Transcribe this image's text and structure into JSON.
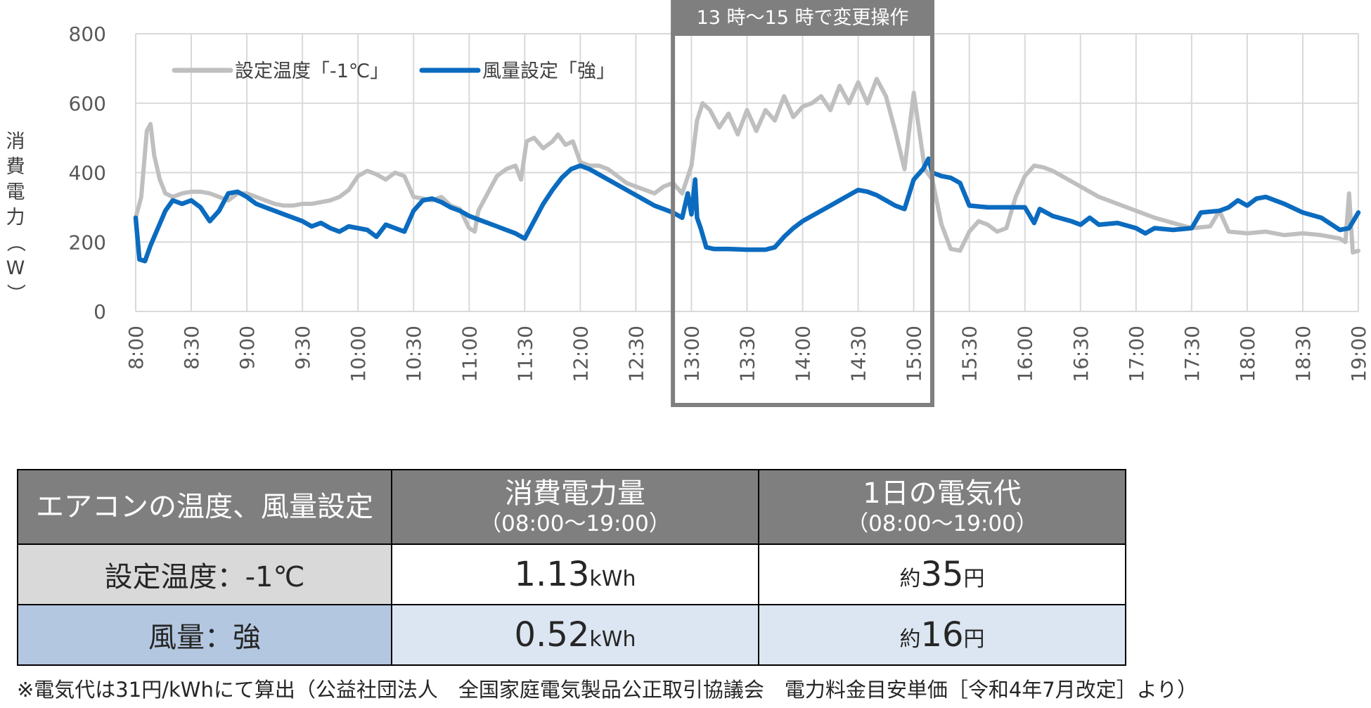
{
  "chart_data": {
    "type": "line",
    "title": "",
    "ylabel": "消費電力（W）",
    "ylim": [
      0,
      800
    ],
    "yticks": [
      "0",
      "200",
      "400",
      "600",
      "800"
    ],
    "xlim": [
      "8:00",
      "19:00"
    ],
    "xticks": [
      "8:00",
      "8:30",
      "9:00",
      "9:30",
      "10:00",
      "10:30",
      "11:00",
      "11:30",
      "12:00",
      "12:30",
      "13:00",
      "13:30",
      "14:00",
      "14:30",
      "15:00",
      "15:30",
      "16:00",
      "16:30",
      "17:00",
      "17:30",
      "18:00",
      "18:30",
      "19:00"
    ],
    "grid": true,
    "legend_position": "top-left",
    "highlight": {
      "label": "13 時～15 時で変更操作",
      "from": "12:50",
      "to": "15:10"
    },
    "series": [
      {
        "name": "設定温度「-1℃」",
        "color": "#bfbfbf",
        "points": [
          [
            "8:00",
            270
          ],
          [
            "8:03",
            330
          ],
          [
            "8:06",
            520
          ],
          [
            "8:08",
            540
          ],
          [
            "8:10",
            450
          ],
          [
            "8:13",
            380
          ],
          [
            "8:16",
            340
          ],
          [
            "8:20",
            330
          ],
          [
            "8:25",
            340
          ],
          [
            "8:30",
            345
          ],
          [
            "8:35",
            345
          ],
          [
            "8:40",
            340
          ],
          [
            "8:45",
            330
          ],
          [
            "8:50",
            320
          ],
          [
            "8:55",
            340
          ],
          [
            "9:00",
            340
          ],
          [
            "9:05",
            330
          ],
          [
            "9:10",
            320
          ],
          [
            "9:15",
            310
          ],
          [
            "9:20",
            305
          ],
          [
            "9:25",
            305
          ],
          [
            "9:30",
            310
          ],
          [
            "9:35",
            310
          ],
          [
            "9:40",
            315
          ],
          [
            "9:45",
            320
          ],
          [
            "9:50",
            330
          ],
          [
            "9:55",
            350
          ],
          [
            "10:00",
            390
          ],
          [
            "10:05",
            405
          ],
          [
            "10:10",
            395
          ],
          [
            "10:15",
            380
          ],
          [
            "10:20",
            400
          ],
          [
            "10:25",
            390
          ],
          [
            "10:30",
            330
          ],
          [
            "10:35",
            325
          ],
          [
            "10:40",
            320
          ],
          [
            "10:45",
            330
          ],
          [
            "10:50",
            305
          ],
          [
            "10:55",
            295
          ],
          [
            "11:00",
            240
          ],
          [
            "11:03",
            230
          ],
          [
            "11:05",
            290
          ],
          [
            "11:10",
            340
          ],
          [
            "11:15",
            390
          ],
          [
            "11:20",
            410
          ],
          [
            "11:25",
            420
          ],
          [
            "11:28",
            380
          ],
          [
            "11:31",
            490
          ],
          [
            "11:35",
            500
          ],
          [
            "11:40",
            470
          ],
          [
            "11:45",
            490
          ],
          [
            "11:48",
            510
          ],
          [
            "11:52",
            480
          ],
          [
            "11:56",
            490
          ],
          [
            "12:00",
            430
          ],
          [
            "12:05",
            420
          ],
          [
            "12:10",
            420
          ],
          [
            "12:15",
            410
          ],
          [
            "12:20",
            390
          ],
          [
            "12:25",
            370
          ],
          [
            "12:30",
            360
          ],
          [
            "12:35",
            350
          ],
          [
            "12:40",
            340
          ],
          [
            "12:45",
            360
          ],
          [
            "12:50",
            370
          ],
          [
            "12:55",
            340
          ],
          [
            "13:00",
            420
          ],
          [
            "13:03",
            550
          ],
          [
            "13:06",
            600
          ],
          [
            "13:10",
            580
          ],
          [
            "13:15",
            530
          ],
          [
            "13:20",
            570
          ],
          [
            "13:25",
            510
          ],
          [
            "13:30",
            580
          ],
          [
            "13:35",
            520
          ],
          [
            "13:40",
            580
          ],
          [
            "13:45",
            550
          ],
          [
            "13:50",
            620
          ],
          [
            "13:55",
            560
          ],
          [
            "14:00",
            590
          ],
          [
            "14:05",
            600
          ],
          [
            "14:10",
            620
          ],
          [
            "14:15",
            580
          ],
          [
            "14:20",
            650
          ],
          [
            "14:25",
            600
          ],
          [
            "14:30",
            660
          ],
          [
            "14:35",
            600
          ],
          [
            "14:40",
            670
          ],
          [
            "14:45",
            620
          ],
          [
            "14:50",
            520
          ],
          [
            "14:55",
            410
          ],
          [
            "15:00",
            630
          ],
          [
            "15:03",
            520
          ],
          [
            "15:06",
            410
          ],
          [
            "15:10",
            380
          ],
          [
            "15:15",
            250
          ],
          [
            "15:20",
            180
          ],
          [
            "15:25",
            175
          ],
          [
            "15:30",
            230
          ],
          [
            "15:35",
            260
          ],
          [
            "15:40",
            250
          ],
          [
            "15:45",
            230
          ],
          [
            "15:50",
            240
          ],
          [
            "15:55",
            330
          ],
          [
            "16:00",
            390
          ],
          [
            "16:05",
            420
          ],
          [
            "16:10",
            415
          ],
          [
            "16:15",
            405
          ],
          [
            "16:20",
            390
          ],
          [
            "16:30",
            360
          ],
          [
            "16:40",
            330
          ],
          [
            "16:50",
            310
          ],
          [
            "17:00",
            290
          ],
          [
            "17:10",
            270
          ],
          [
            "17:20",
            255
          ],
          [
            "17:30",
            240
          ],
          [
            "17:40",
            245
          ],
          [
            "17:45",
            290
          ],
          [
            "17:50",
            230
          ],
          [
            "18:00",
            225
          ],
          [
            "18:10",
            230
          ],
          [
            "18:20",
            220
          ],
          [
            "18:30",
            225
          ],
          [
            "18:40",
            220
          ],
          [
            "18:50",
            210
          ],
          [
            "18:53",
            200
          ],
          [
            "18:55",
            340
          ],
          [
            "18:57",
            170
          ],
          [
            "19:00",
            175
          ]
        ]
      },
      {
        "name": "風量設定「強」",
        "color": "#0b6bbf",
        "points": [
          [
            "8:00",
            270
          ],
          [
            "8:02",
            150
          ],
          [
            "8:05",
            145
          ],
          [
            "8:08",
            190
          ],
          [
            "8:12",
            240
          ],
          [
            "8:16",
            290
          ],
          [
            "8:20",
            320
          ],
          [
            "8:25",
            310
          ],
          [
            "8:30",
            320
          ],
          [
            "8:35",
            300
          ],
          [
            "8:40",
            260
          ],
          [
            "8:45",
            290
          ],
          [
            "8:50",
            340
          ],
          [
            "8:55",
            345
          ],
          [
            "9:00",
            330
          ],
          [
            "9:05",
            310
          ],
          [
            "9:10",
            300
          ],
          [
            "9:15",
            290
          ],
          [
            "9:20",
            280
          ],
          [
            "9:25",
            270
          ],
          [
            "9:30",
            260
          ],
          [
            "9:35",
            245
          ],
          [
            "9:40",
            255
          ],
          [
            "9:45",
            240
          ],
          [
            "9:50",
            230
          ],
          [
            "9:55",
            245
          ],
          [
            "10:00",
            240
          ],
          [
            "10:05",
            235
          ],
          [
            "10:10",
            215
          ],
          [
            "10:15",
            250
          ],
          [
            "10:20",
            240
          ],
          [
            "10:25",
            230
          ],
          [
            "10:30",
            290
          ],
          [
            "10:35",
            320
          ],
          [
            "10:40",
            325
          ],
          [
            "10:45",
            315
          ],
          [
            "10:50",
            300
          ],
          [
            "10:55",
            290
          ],
          [
            "11:00",
            275
          ],
          [
            "11:05",
            265
          ],
          [
            "11:10",
            255
          ],
          [
            "11:15",
            245
          ],
          [
            "11:20",
            235
          ],
          [
            "11:25",
            225
          ],
          [
            "11:30",
            210
          ],
          [
            "11:35",
            260
          ],
          [
            "11:40",
            310
          ],
          [
            "11:45",
            350
          ],
          [
            "11:50",
            385
          ],
          [
            "11:55",
            410
          ],
          [
            "12:00",
            420
          ],
          [
            "12:05",
            410
          ],
          [
            "12:10",
            395
          ],
          [
            "12:15",
            380
          ],
          [
            "12:20",
            365
          ],
          [
            "12:25",
            350
          ],
          [
            "12:30",
            335
          ],
          [
            "12:35",
            320
          ],
          [
            "12:40",
            305
          ],
          [
            "12:45",
            295
          ],
          [
            "12:50",
            285
          ],
          [
            "12:55",
            270
          ],
          [
            "12:58",
            340
          ],
          [
            "13:00",
            280
          ],
          [
            "13:02",
            380
          ],
          [
            "13:03",
            270
          ],
          [
            "13:05",
            240
          ],
          [
            "13:08",
            185
          ],
          [
            "13:12",
            180
          ],
          [
            "13:20",
            180
          ],
          [
            "13:30",
            178
          ],
          [
            "13:40",
            178
          ],
          [
            "13:45",
            185
          ],
          [
            "13:50",
            215
          ],
          [
            "13:55",
            240
          ],
          [
            "14:00",
            260
          ],
          [
            "14:05",
            275
          ],
          [
            "14:10",
            290
          ],
          [
            "14:15",
            305
          ],
          [
            "14:20",
            320
          ],
          [
            "14:25",
            335
          ],
          [
            "14:30",
            350
          ],
          [
            "14:35",
            345
          ],
          [
            "14:40",
            335
          ],
          [
            "14:45",
            320
          ],
          [
            "14:50",
            305
          ],
          [
            "14:55",
            295
          ],
          [
            "15:00",
            380
          ],
          [
            "15:05",
            410
          ],
          [
            "15:08",
            440
          ],
          [
            "15:10",
            400
          ],
          [
            "15:15",
            390
          ],
          [
            "15:20",
            385
          ],
          [
            "15:25",
            370
          ],
          [
            "15:30",
            305
          ],
          [
            "15:40",
            300
          ],
          [
            "15:50",
            300
          ],
          [
            "16:00",
            300
          ],
          [
            "16:05",
            255
          ],
          [
            "16:08",
            295
          ],
          [
            "16:15",
            275
          ],
          [
            "16:25",
            260
          ],
          [
            "16:30",
            250
          ],
          [
            "16:35",
            270
          ],
          [
            "16:40",
            250
          ],
          [
            "16:50",
            255
          ],
          [
            "17:00",
            240
          ],
          [
            "17:05",
            225
          ],
          [
            "17:10",
            240
          ],
          [
            "17:20",
            235
          ],
          [
            "17:30",
            240
          ],
          [
            "17:35",
            285
          ],
          [
            "17:45",
            290
          ],
          [
            "17:50",
            300
          ],
          [
            "17:55",
            320
          ],
          [
            "18:00",
            305
          ],
          [
            "18:05",
            325
          ],
          [
            "18:10",
            330
          ],
          [
            "18:20",
            310
          ],
          [
            "18:30",
            285
          ],
          [
            "18:40",
            270
          ],
          [
            "18:50",
            235
          ],
          [
            "18:55",
            240
          ],
          [
            "19:00",
            285
          ]
        ]
      }
    ]
  },
  "table": {
    "header": {
      "col1": "エアコンの温度、風量設定",
      "col2_main": "消費電力量",
      "col2_sub": "（08:00～19:00）",
      "col3_main": "1日の電気代",
      "col3_sub": "（08:00～19:00）"
    },
    "rows": [
      {
        "label": "設定温度：-1℃",
        "energy": "1.13",
        "energy_unit": "kWh",
        "cost_prefix": "約",
        "cost": "35",
        "cost_unit": "円"
      },
      {
        "label": "風量：強",
        "energy": "0.52",
        "energy_unit": "kWh",
        "cost_prefix": "約",
        "cost": "16",
        "cost_unit": "円"
      }
    ]
  },
  "footnote": "※電気代は31円/kWhにて算出（公益社団法人　全国家庭電気製品公正取引協議会　電力料金目安単価［令和4年7月改定］より）"
}
